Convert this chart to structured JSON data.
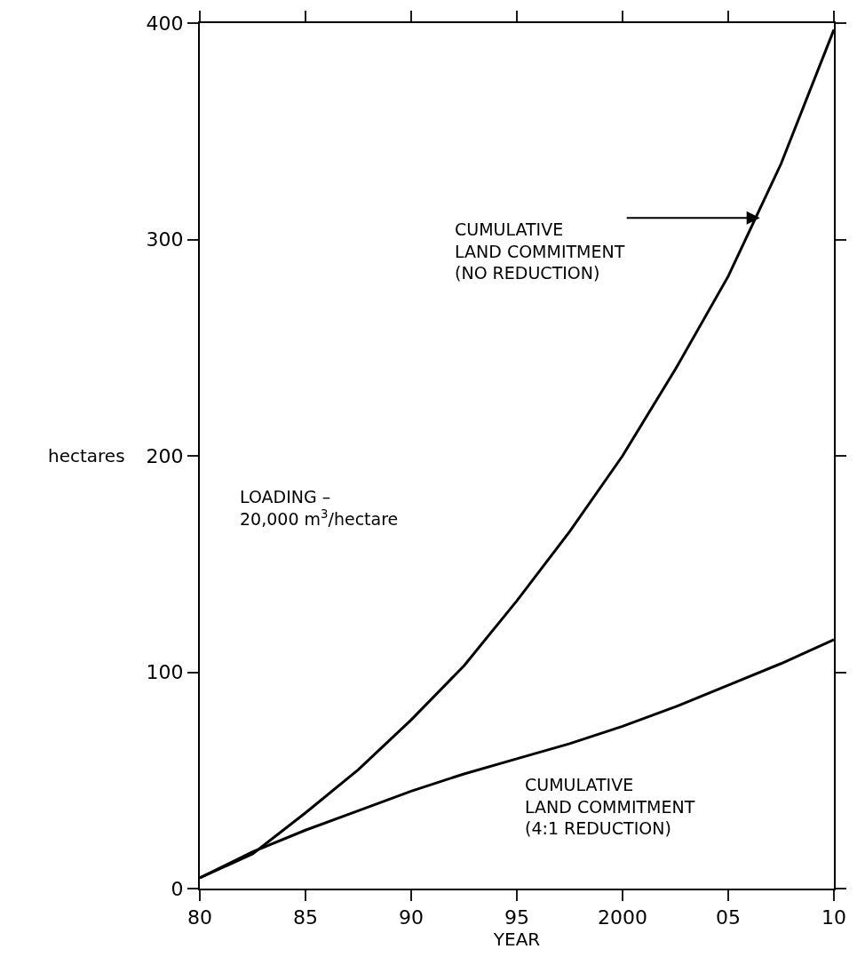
{
  "chart_data": {
    "type": "line",
    "xlabel": "YEAR",
    "ylabel": "hectares",
    "x": [
      1980,
      1982.5,
      1985,
      1987.5,
      1990,
      1992.5,
      1995,
      1997.5,
      2000,
      2002.5,
      2005,
      2007.5,
      2010
    ],
    "series": [
      {
        "color": "#000000",
        "values": [
          5,
          16,
          35,
          55,
          78,
          103,
          133,
          165,
          200,
          240,
          283,
          335,
          397
        ]
      },
      {
        "color": "#000000",
        "values": [
          5,
          17,
          27,
          36,
          45,
          53,
          60,
          67,
          75,
          84,
          94,
          104,
          115
        ]
      }
    ],
    "xlim": [
      1980,
      2010
    ],
    "xticks": [
      {
        "value": 1980,
        "label": "80"
      },
      {
        "value": 1985,
        "label": "85"
      },
      {
        "value": 1990,
        "label": "90"
      },
      {
        "value": 1995,
        "label": "95"
      },
      {
        "value": 2000,
        "label": "2000"
      },
      {
        "value": 2005,
        "label": "05"
      },
      {
        "value": 2010,
        "label": "10"
      }
    ],
    "ylim": [
      0,
      400
    ],
    "yticks": [
      0,
      100,
      200,
      300,
      400
    ],
    "marker": "none",
    "line_style": "solid",
    "annotations": [
      {
        "text": "CUMULATIVE\nLAND COMMITMENT\n(NO REDUCTION)",
        "x": 2006.5,
        "y": 310
      },
      "CUMULATIVE\nLAND COMMITMENT\n(4:1 REDUCTION)",
      "LOADING –\n20,000 m$^{3}$/hectare"
    ]
  }
}
